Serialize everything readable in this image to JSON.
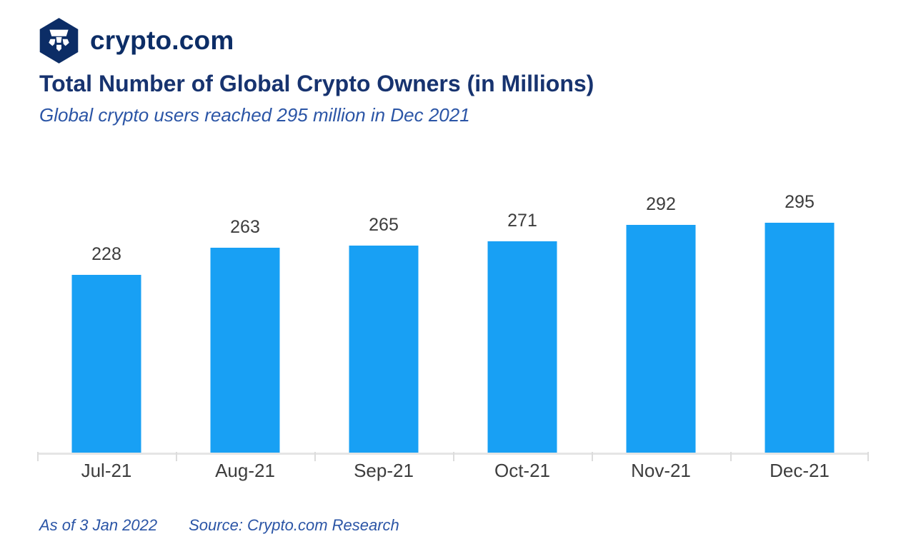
{
  "brand": {
    "logo_text": "crypto.com",
    "logo_icon": "crypto-com-shield-icon"
  },
  "header": {
    "title": "Total Number of Global Crypto Owners (in Millions)",
    "subtitle": "Global crypto users reached 295 million in Dec 2021"
  },
  "chart_data": {
    "type": "bar",
    "categories": [
      "Jul-21",
      "Aug-21",
      "Sep-21",
      "Oct-21",
      "Nov-21",
      "Dec-21"
    ],
    "values": [
      228,
      263,
      265,
      271,
      292,
      295
    ],
    "title": "Total Number of Global Crypto Owners (in Millions)",
    "subtitle": "Global crypto users reached 295 million in Dec 2021",
    "xlabel": "",
    "ylabel": "",
    "ylim": [
      0,
      366
    ],
    "grid": false,
    "legend": false,
    "data_labels": true,
    "bar_color": "#18a0f4"
  },
  "footer": {
    "as_of": "As of 3 Jan 2022",
    "source": "Source: Crypto.com Research"
  },
  "colors": {
    "logo_navy": "#0c2d66",
    "title": "#17336f",
    "subtitle": "#2b55a6",
    "bar": "#18a0f4",
    "value_label": "#3d3d3d",
    "axis_label": "#3d3d3d",
    "axis_line": "#e5e5e5",
    "tick": "#dcdcdc",
    "background": "#ffffff"
  }
}
